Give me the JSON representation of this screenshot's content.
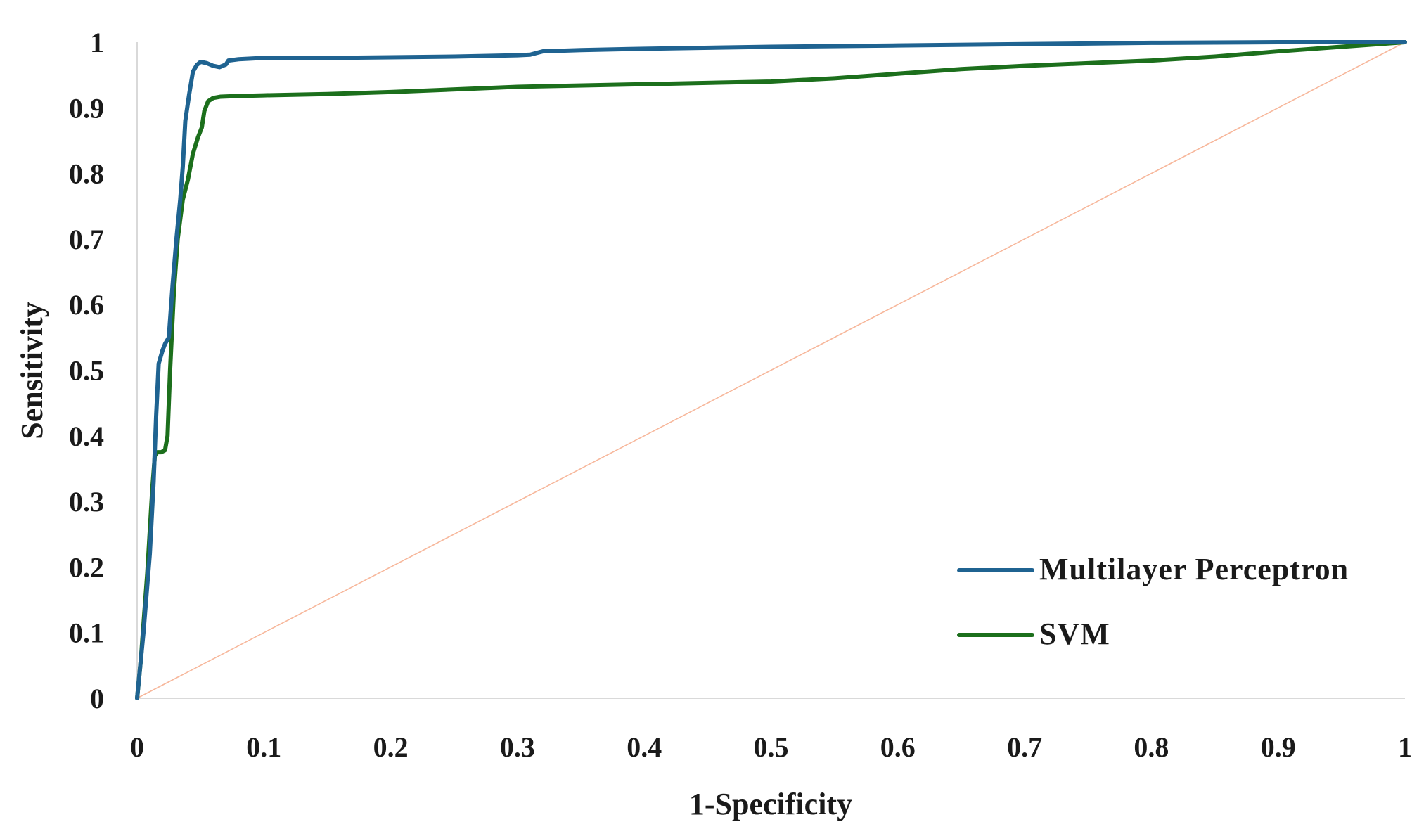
{
  "chart_data": {
    "type": "line",
    "title": "",
    "xlabel": "1-Specificity",
    "ylabel": "Sensitivity",
    "xlim": [
      0,
      1
    ],
    "ylim": [
      0,
      1
    ],
    "grid": false,
    "legend_position": "bottom-right",
    "x_ticks": [
      "0",
      "0.1",
      "0.2",
      "0.3",
      "0.4",
      "0.5",
      "0.6",
      "0.7",
      "0.8",
      "0.9",
      "1"
    ],
    "y_ticks": [
      "0",
      "0.1",
      "0.2",
      "0.3",
      "0.4",
      "0.5",
      "0.6",
      "0.7",
      "0.8",
      "0.9",
      "1"
    ],
    "series": [
      {
        "name": "Multilayer Perceptron",
        "color": "#1f6391",
        "x": [
          0,
          0.005,
          0.01,
          0.013,
          0.015,
          0.017,
          0.02,
          0.022,
          0.025,
          0.028,
          0.031,
          0.034,
          0.036,
          0.038,
          0.041,
          0.044,
          0.047,
          0.05,
          0.055,
          0.06,
          0.065,
          0.07,
          0.072,
          0.08,
          0.1,
          0.15,
          0.2,
          0.25,
          0.3,
          0.31,
          0.32,
          0.35,
          0.4,
          0.5,
          0.6,
          0.7,
          0.8,
          0.9,
          1.0
        ],
        "y": [
          0,
          0.1,
          0.22,
          0.33,
          0.43,
          0.51,
          0.53,
          0.54,
          0.55,
          0.63,
          0.7,
          0.76,
          0.81,
          0.88,
          0.92,
          0.955,
          0.965,
          0.97,
          0.968,
          0.964,
          0.962,
          0.966,
          0.972,
          0.974,
          0.976,
          0.976,
          0.977,
          0.978,
          0.98,
          0.981,
          0.986,
          0.988,
          0.99,
          0.993,
          0.995,
          0.997,
          0.999,
          1.0,
          1.0
        ]
      },
      {
        "name": "SVM",
        "color": "#1c6f1c",
        "x": [
          0,
          0.003,
          0.008,
          0.012,
          0.014,
          0.016,
          0.019,
          0.022,
          0.024,
          0.026,
          0.029,
          0.032,
          0.036,
          0.04,
          0.044,
          0.048,
          0.051,
          0.053,
          0.056,
          0.06,
          0.066,
          0.08,
          0.1,
          0.15,
          0.2,
          0.3,
          0.4,
          0.5,
          0.55,
          0.6,
          0.65,
          0.7,
          0.75,
          0.8,
          0.85,
          0.9,
          0.95,
          1.0
        ],
        "y": [
          0,
          0.06,
          0.19,
          0.32,
          0.37,
          0.375,
          0.375,
          0.378,
          0.4,
          0.5,
          0.62,
          0.7,
          0.76,
          0.79,
          0.83,
          0.855,
          0.87,
          0.895,
          0.91,
          0.915,
          0.917,
          0.918,
          0.919,
          0.921,
          0.924,
          0.932,
          0.936,
          0.94,
          0.945,
          0.952,
          0.959,
          0.964,
          0.968,
          0.972,
          0.978,
          0.986,
          0.993,
          1.0
        ]
      },
      {
        "name": "reference",
        "color": "#f7b79b",
        "x": [
          0,
          1
        ],
        "y": [
          0,
          1
        ]
      }
    ]
  }
}
